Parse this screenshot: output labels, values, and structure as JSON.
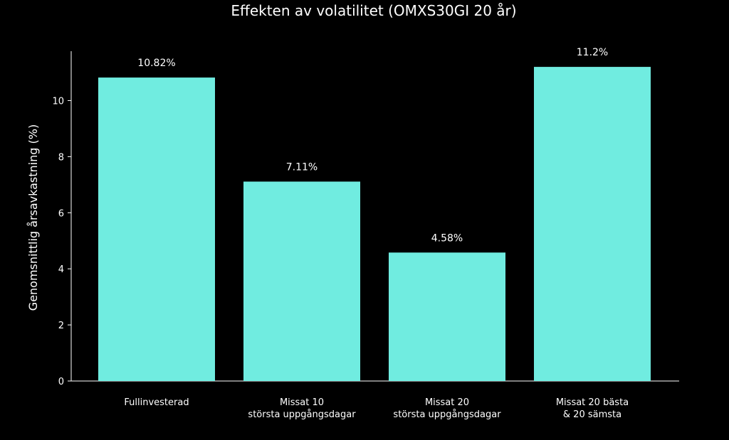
{
  "chart_data": {
    "type": "bar",
    "title": "Effekten av volatilitet (OMXS30GI 20 år)",
    "xlabel": "",
    "ylabel": "Genomsnittlig årsavkastning (%)",
    "categories": [
      [
        "Fullinvesterad"
      ],
      [
        "Missat 10",
        "största uppgångsdagar"
      ],
      [
        "Missat 20",
        "största uppgångsdagar"
      ],
      [
        "Missat 20 bästa",
        "& 20 sämsta"
      ]
    ],
    "values": [
      10.82,
      7.11,
      4.58,
      11.2
    ],
    "data_labels": [
      "10.82%",
      "7.11%",
      "4.58%",
      "11.2%"
    ],
    "yticks": [
      0,
      2,
      4,
      6,
      8,
      10
    ],
    "ylim": [
      0,
      11.76
    ],
    "grid": false,
    "colors": {
      "background": "#000000",
      "bar": "#70ece0",
      "axis": "#ffffff",
      "text": "#ffffff"
    }
  }
}
